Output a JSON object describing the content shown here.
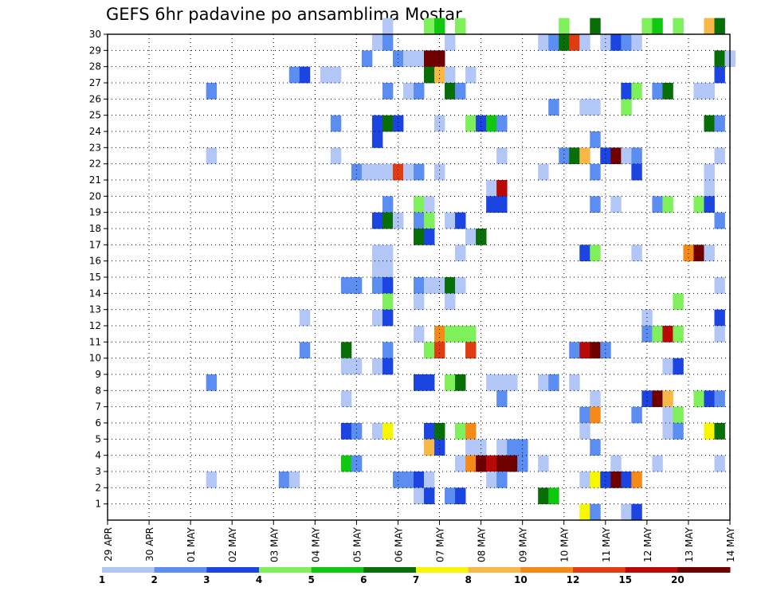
{
  "chart_data": {
    "type": "heatmap",
    "title": "GEFS 6hr padavine po ansamblima Mostar",
    "x_labels": [
      "29 APR",
      "30 APR",
      "01 MAY",
      "02 MAY",
      "03 MAY",
      "04 MAY",
      "05 MAY",
      "06 MAY",
      "07 MAY",
      "08 MAY",
      "09 MAY",
      "10 MAY",
      "11 MAY",
      "12 MAY",
      "13 MAY",
      "14 MAY"
    ],
    "y_labels": [
      "1",
      "2",
      "3",
      "4",
      "5",
      "6",
      "7",
      "8",
      "9",
      "10",
      "11",
      "12",
      "13",
      "14",
      "15",
      "16",
      "17",
      "18",
      "19",
      "20",
      "21",
      "22",
      "23",
      "24",
      "25",
      "26",
      "27",
      "28",
      "29",
      "30"
    ],
    "y_range": [
      0,
      30
    ],
    "x_steps": 61,
    "steps_per_day": 4,
    "grid": true,
    "legend": {
      "position": "bottom",
      "tick_labels": [
        "1",
        "2",
        "3",
        "4",
        "5",
        "6",
        "7",
        "8",
        "10",
        "12",
        "15",
        "20"
      ],
      "colors": [
        "#b3c7f7",
        "#5b8ef0",
        "#1c44e0",
        "#7fef5c",
        "#10c810",
        "#086e08",
        "#f7f700",
        "#f7b848",
        "#f58a18",
        "#e03c14",
        "#b80808",
        "#6e0000"
      ]
    },
    "cells": [
      [
        30,
        27,
        0
      ],
      [
        30,
        31,
        3
      ],
      [
        30,
        32,
        4
      ],
      [
        30,
        34,
        3
      ],
      [
        30,
        44,
        3
      ],
      [
        30,
        47,
        5
      ],
      [
        30,
        52,
        3
      ],
      [
        30,
        53,
        4
      ],
      [
        30,
        55,
        3
      ],
      [
        30,
        58,
        7
      ],
      [
        30,
        59,
        5
      ],
      [
        29,
        26,
        0
      ],
      [
        29,
        27,
        1
      ],
      [
        29,
        33,
        0
      ],
      [
        29,
        42,
        0
      ],
      [
        29,
        43,
        1
      ],
      [
        29,
        44,
        5
      ],
      [
        29,
        45,
        9
      ],
      [
        29,
        46,
        0
      ],
      [
        29,
        48,
        0
      ],
      [
        29,
        49,
        2
      ],
      [
        29,
        50,
        1
      ],
      [
        29,
        51,
        0
      ],
      [
        28,
        25,
        1
      ],
      [
        28,
        28,
        1
      ],
      [
        28,
        29,
        0
      ],
      [
        28,
        30,
        0
      ],
      [
        28,
        31,
        11
      ],
      [
        28,
        32,
        11
      ],
      [
        28,
        59,
        5
      ],
      [
        28,
        60,
        0
      ],
      [
        27,
        18,
        1
      ],
      [
        27,
        19,
        2
      ],
      [
        27,
        21,
        0
      ],
      [
        27,
        22,
        0
      ],
      [
        27,
        31,
        5
      ],
      [
        27,
        32,
        7
      ],
      [
        27,
        33,
        0
      ],
      [
        27,
        35,
        0
      ],
      [
        27,
        59,
        2
      ],
      [
        26,
        10,
        1
      ],
      [
        26,
        27,
        1
      ],
      [
        26,
        29,
        0
      ],
      [
        26,
        30,
        1
      ],
      [
        26,
        33,
        5
      ],
      [
        26,
        34,
        1
      ],
      [
        26,
        50,
        2
      ],
      [
        26,
        51,
        3
      ],
      [
        26,
        53,
        1
      ],
      [
        26,
        54,
        5
      ],
      [
        26,
        57,
        0
      ],
      [
        26,
        58,
        0
      ],
      [
        25,
        43,
        1
      ],
      [
        25,
        46,
        0
      ],
      [
        25,
        47,
        0
      ],
      [
        25,
        50,
        3
      ],
      [
        24,
        22,
        1
      ],
      [
        24,
        26,
        2
      ],
      [
        24,
        27,
        5
      ],
      [
        24,
        28,
        2
      ],
      [
        24,
        32,
        0
      ],
      [
        24,
        35,
        3
      ],
      [
        24,
        36,
        2
      ],
      [
        24,
        37,
        4
      ],
      [
        24,
        38,
        1
      ],
      [
        24,
        58,
        5
      ],
      [
        24,
        59,
        1
      ],
      [
        23,
        26,
        2
      ],
      [
        23,
        47,
        1
      ],
      [
        22,
        10,
        0
      ],
      [
        22,
        22,
        0
      ],
      [
        22,
        38,
        0
      ],
      [
        22,
        44,
        1
      ],
      [
        22,
        45,
        5
      ],
      [
        22,
        46,
        7
      ],
      [
        22,
        48,
        2
      ],
      [
        22,
        49,
        11
      ],
      [
        22,
        50,
        0
      ],
      [
        22,
        51,
        1
      ],
      [
        22,
        59,
        0
      ],
      [
        21,
        24,
        1
      ],
      [
        21,
        25,
        0
      ],
      [
        21,
        26,
        0
      ],
      [
        21,
        27,
        0
      ],
      [
        21,
        28,
        9
      ],
      [
        21,
        29,
        0
      ],
      [
        21,
        30,
        1
      ],
      [
        21,
        32,
        0
      ],
      [
        21,
        42,
        0
      ],
      [
        21,
        47,
        1
      ],
      [
        21,
        51,
        2
      ],
      [
        21,
        58,
        0
      ],
      [
        20,
        37,
        0
      ],
      [
        20,
        38,
        10
      ],
      [
        20,
        58,
        0
      ],
      [
        19,
        27,
        1
      ],
      [
        19,
        30,
        3
      ],
      [
        19,
        31,
        0
      ],
      [
        19,
        37,
        2
      ],
      [
        19,
        38,
        2
      ],
      [
        19,
        47,
        1
      ],
      [
        19,
        49,
        0
      ],
      [
        19,
        53,
        1
      ],
      [
        19,
        54,
        3
      ],
      [
        19,
        57,
        3
      ],
      [
        19,
        58,
        2
      ],
      [
        18,
        26,
        2
      ],
      [
        18,
        27,
        5
      ],
      [
        18,
        28,
        0
      ],
      [
        18,
        30,
        1
      ],
      [
        18,
        31,
        3
      ],
      [
        18,
        33,
        0
      ],
      [
        18,
        34,
        2
      ],
      [
        18,
        59,
        1
      ],
      [
        17,
        30,
        5
      ],
      [
        17,
        31,
        2
      ],
      [
        17,
        35,
        0
      ],
      [
        17,
        36,
        5
      ],
      [
        16,
        26,
        0
      ],
      [
        16,
        27,
        0
      ],
      [
        16,
        34,
        0
      ],
      [
        16,
        46,
        2
      ],
      [
        16,
        47,
        3
      ],
      [
        16,
        51,
        0
      ],
      [
        16,
        56,
        8
      ],
      [
        16,
        57,
        11
      ],
      [
        16,
        58,
        0
      ],
      [
        15,
        26,
        0
      ],
      [
        15,
        27,
        0
      ],
      [
        14,
        23,
        1
      ],
      [
        14,
        24,
        1
      ],
      [
        14,
        26,
        1
      ],
      [
        14,
        27,
        2
      ],
      [
        14,
        30,
        1
      ],
      [
        14,
        31,
        0
      ],
      [
        14,
        32,
        0
      ],
      [
        14,
        33,
        5
      ],
      [
        14,
        34,
        0
      ],
      [
        14,
        59,
        0
      ],
      [
        13,
        27,
        3
      ],
      [
        13,
        30,
        0
      ],
      [
        13,
        33,
        0
      ],
      [
        13,
        55,
        3
      ],
      [
        12,
        19,
        0
      ],
      [
        12,
        26,
        0
      ],
      [
        12,
        27,
        2
      ],
      [
        12,
        52,
        0
      ],
      [
        12,
        59,
        2
      ],
      [
        11,
        30,
        0
      ],
      [
        11,
        32,
        8
      ],
      [
        11,
        33,
        3
      ],
      [
        11,
        34,
        3
      ],
      [
        11,
        35,
        3
      ],
      [
        11,
        52,
        1
      ],
      [
        11,
        53,
        3
      ],
      [
        11,
        54,
        10
      ],
      [
        11,
        55,
        3
      ],
      [
        11,
        59,
        0
      ],
      [
        10,
        19,
        1
      ],
      [
        10,
        23,
        5
      ],
      [
        10,
        27,
        1
      ],
      [
        10,
        31,
        3
      ],
      [
        10,
        32,
        9
      ],
      [
        10,
        35,
        9
      ],
      [
        10,
        45,
        1
      ],
      [
        10,
        46,
        10
      ],
      [
        10,
        47,
        11
      ],
      [
        10,
        48,
        1
      ],
      [
        9,
        23,
        0
      ],
      [
        9,
        24,
        0
      ],
      [
        9,
        26,
        0
      ],
      [
        9,
        27,
        2
      ],
      [
        9,
        54,
        0
      ],
      [
        9,
        55,
        2
      ],
      [
        8,
        10,
        1
      ],
      [
        8,
        30,
        2
      ],
      [
        8,
        31,
        2
      ],
      [
        8,
        33,
        3
      ],
      [
        8,
        34,
        5
      ],
      [
        8,
        37,
        0
      ],
      [
        8,
        38,
        0
      ],
      [
        8,
        39,
        0
      ],
      [
        8,
        42,
        0
      ],
      [
        8,
        43,
        1
      ],
      [
        8,
        45,
        0
      ],
      [
        7,
        23,
        0
      ],
      [
        7,
        38,
        1
      ],
      [
        7,
        47,
        0
      ],
      [
        7,
        52,
        2
      ],
      [
        7,
        53,
        11
      ],
      [
        7,
        54,
        7
      ],
      [
        7,
        57,
        3
      ],
      [
        7,
        58,
        2
      ],
      [
        7,
        59,
        1
      ],
      [
        6,
        46,
        1
      ],
      [
        6,
        47,
        8
      ],
      [
        6,
        51,
        1
      ],
      [
        6,
        54,
        0
      ],
      [
        6,
        55,
        3
      ],
      [
        5,
        23,
        2
      ],
      [
        5,
        24,
        1
      ],
      [
        5,
        26,
        0
      ],
      [
        5,
        27,
        6
      ],
      [
        5,
        31,
        2
      ],
      [
        5,
        32,
        5
      ],
      [
        5,
        34,
        3
      ],
      [
        5,
        35,
        8
      ],
      [
        5,
        46,
        0
      ],
      [
        5,
        54,
        0
      ],
      [
        5,
        55,
        1
      ],
      [
        5,
        58,
        6
      ],
      [
        5,
        59,
        5
      ],
      [
        4,
        31,
        7
      ],
      [
        4,
        32,
        2
      ],
      [
        4,
        35,
        0
      ],
      [
        4,
        36,
        0
      ],
      [
        4,
        38,
        0
      ],
      [
        4,
        39,
        1
      ],
      [
        4,
        40,
        1
      ],
      [
        4,
        47,
        1
      ],
      [
        3,
        23,
        4
      ],
      [
        3,
        24,
        1
      ],
      [
        3,
        34,
        0
      ],
      [
        3,
        35,
        8
      ],
      [
        3,
        36,
        11
      ],
      [
        3,
        37,
        10
      ],
      [
        3,
        38,
        11
      ],
      [
        3,
        39,
        11
      ],
      [
        3,
        40,
        1
      ],
      [
        3,
        42,
        0
      ],
      [
        3,
        49,
        0
      ],
      [
        3,
        53,
        0
      ],
      [
        3,
        59,
        0
      ],
      [
        2,
        10,
        0
      ],
      [
        2,
        17,
        1
      ],
      [
        2,
        18,
        0
      ],
      [
        2,
        28,
        1
      ],
      [
        2,
        29,
        1
      ],
      [
        2,
        30,
        2
      ],
      [
        2,
        31,
        0
      ],
      [
        2,
        37,
        0
      ],
      [
        2,
        38,
        1
      ],
      [
        2,
        46,
        0
      ],
      [
        2,
        47,
        6
      ],
      [
        2,
        48,
        2
      ],
      [
        2,
        49,
        11
      ],
      [
        2,
        50,
        2
      ],
      [
        2,
        51,
        8
      ],
      [
        1,
        30,
        0
      ],
      [
        1,
        31,
        2
      ],
      [
        1,
        33,
        1
      ],
      [
        1,
        34,
        2
      ],
      [
        1,
        42,
        5
      ],
      [
        1,
        43,
        4
      ],
      [
        0,
        46,
        6
      ],
      [
        0,
        47,
        1
      ],
      [
        0,
        50,
        0
      ],
      [
        0,
        51,
        2
      ]
    ],
    "row_runs": [
      [
        15,
        47,
        5
      ]
    ]
  }
}
